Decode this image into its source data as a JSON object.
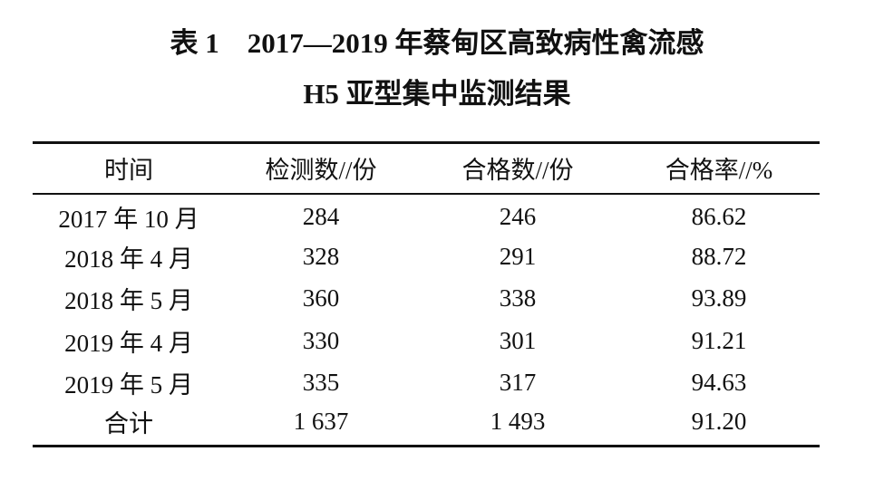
{
  "title": {
    "line1": "表 1　2017—2019 年蔡甸区高致病性禽流感",
    "line2": "H5 亚型集中监测结果"
  },
  "table": {
    "headers": [
      "时间",
      "检测数//份",
      "合格数//份",
      "合格率//%"
    ],
    "rows": [
      [
        "2017 年 10 月",
        "284",
        "246",
        "86.62"
      ],
      [
        "2018 年 4 月",
        "328",
        "291",
        "88.72"
      ],
      [
        "2018 年 5 月",
        "360",
        "338",
        "93.89"
      ],
      [
        "2019 年 4 月",
        "330",
        "301",
        "91.21"
      ],
      [
        "2019 年 5 月",
        "335",
        "317",
        "94.63"
      ],
      [
        "合计",
        "1 637",
        "1 493",
        "91.20"
      ]
    ]
  }
}
